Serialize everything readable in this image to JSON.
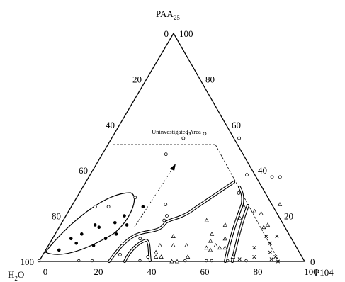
{
  "chart_data": {
    "type": "scatter",
    "coordinate_system": "ternary",
    "vertices": {
      "top": {
        "label": "PAA",
        "subscript": "25"
      },
      "left": {
        "label": "H",
        "subscript": "2",
        "suffix": "O"
      },
      "right": {
        "label": "P104"
      }
    },
    "ticks": {
      "left_side": [
        "0",
        "20",
        "40",
        "60",
        "80",
        "100"
      ],
      "right_side": [
        "100",
        "80",
        "60",
        "40",
        "20",
        "0"
      ],
      "bottom_side": [
        "0",
        "20",
        "40",
        "60",
        "80",
        "100"
      ]
    },
    "annotations": [
      {
        "text": "Uninvestigated Area",
        "location": "upper interior"
      }
    ],
    "series": [
      {
        "marker": "filled-circle",
        "points": [
          [
            15,
            15
          ],
          [
            10,
            8
          ],
          [
            20,
            10
          ],
          [
            13,
            16
          ],
          [
            20,
            17
          ],
          [
            25,
            16
          ],
          [
            22,
            20
          ],
          [
            27,
            24
          ],
          [
            10,
            12
          ],
          [
            5,
            5
          ],
          [
            23,
            12
          ],
          [
            17,
            7
          ],
          [
            7,
            10
          ]
        ]
      },
      {
        "marker": "open-circle",
        "points": [
          [
            14,
            24
          ],
          [
            22,
            28
          ],
          [
            9,
            24
          ],
          [
            24,
            47
          ],
          [
            27,
            54
          ],
          [
            28,
            56
          ],
          [
            34,
            56
          ],
          [
            48,
            54
          ],
          [
            60,
            30
          ],
          [
            59,
            38
          ],
          [
            69,
            37
          ],
          [
            72,
            37
          ],
          [
            33,
            10
          ],
          [
            35,
            25
          ],
          [
            38,
            18
          ],
          [
            27,
            8
          ],
          [
            40,
            2
          ],
          [
            29,
            3
          ],
          [
            38,
            20
          ]
        ]
      },
      {
        "marker": "open-triangle",
        "points": [
          [
            45,
            11
          ],
          [
            42,
            7
          ],
          [
            42,
            4
          ],
          [
            45,
            2
          ],
          [
            47,
            7
          ],
          [
            43,
            2
          ],
          [
            52,
            7
          ],
          [
            54,
            18
          ],
          [
            59,
            12
          ],
          [
            60,
            9
          ],
          [
            60,
            6
          ],
          [
            62,
            5
          ],
          [
            65,
            10
          ],
          [
            65,
            6
          ],
          [
            62,
            16
          ],
          [
            66,
            19
          ],
          [
            70,
            22
          ],
          [
            63,
            7
          ],
          [
            67,
            6
          ],
          [
            72,
            2
          ],
          [
            65,
            24
          ],
          [
            78,
            16
          ],
          [
            77,
            15
          ],
          [
            78,
            25
          ],
          [
            73,
            21
          ],
          [
            52,
            0
          ],
          [
            55,
            2
          ],
          [
            50,
            0
          ]
        ]
      },
      {
        "marker": "cross",
        "points": [
          [
            80,
            2
          ],
          [
            85,
            4
          ],
          [
            90,
            0
          ],
          [
            88,
            2
          ],
          [
            78,
            6
          ],
          [
            83,
            8
          ],
          [
            80,
            11
          ],
          [
            84,
            11
          ],
          [
            87,
            1
          ],
          [
            75,
            1
          ]
        ]
      },
      {
        "marker": "tick-open-circle",
        "points": [
          [
            0,
            0
          ],
          [
            15,
            0
          ],
          [
            20,
            0
          ],
          [
            38,
            0
          ],
          [
            55,
            0
          ],
          [
            63,
            0
          ],
          [
            65,
            0
          ],
          [
            71,
            0
          ],
          [
            78,
            0
          ]
        ]
      }
    ]
  }
}
